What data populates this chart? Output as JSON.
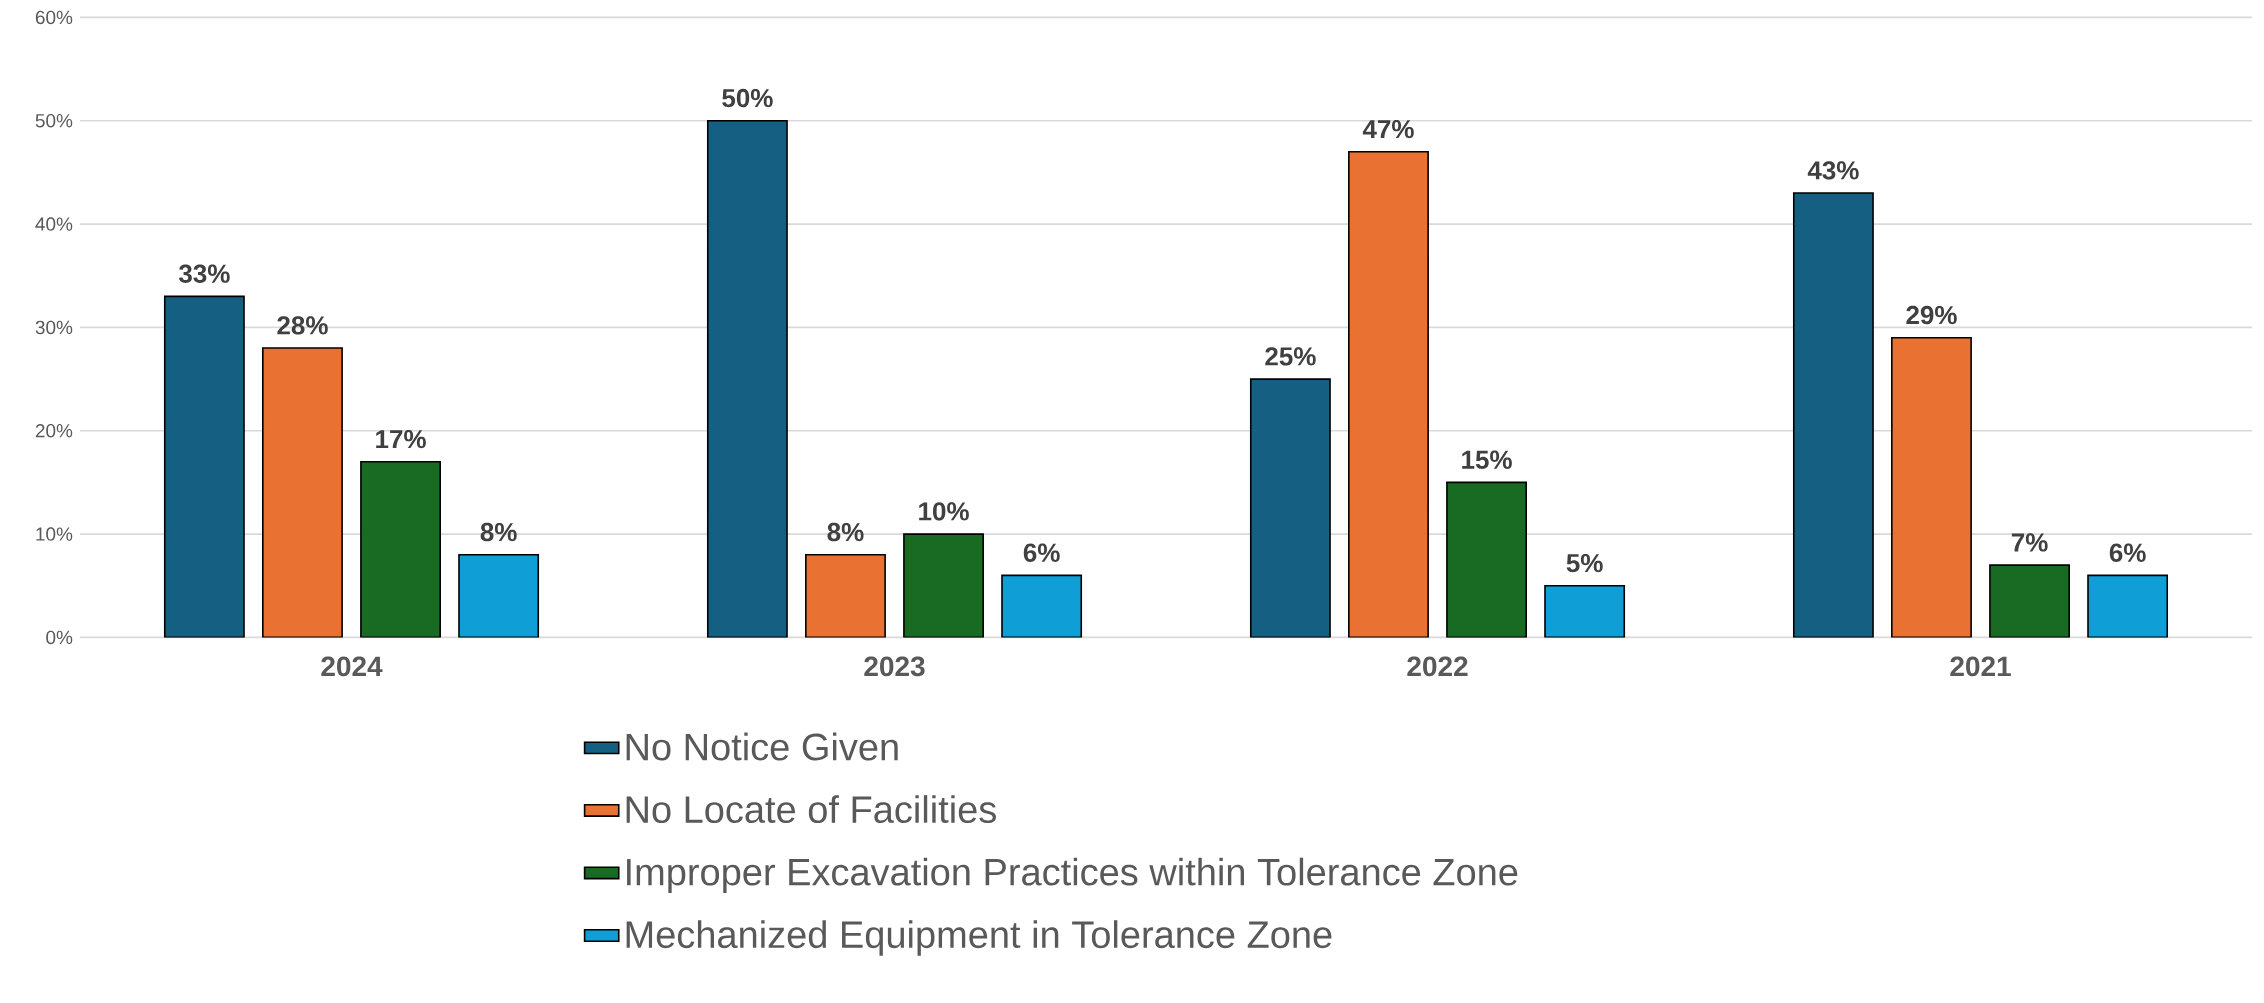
{
  "chart_data": {
    "type": "bar",
    "categories": [
      "2024",
      "2023",
      "2022",
      "2021"
    ],
    "series": [
      {
        "name": "No Notice Given",
        "color": "#156082",
        "values": [
          33,
          50,
          25,
          43
        ],
        "value_labels": [
          "33%",
          "50%",
          "25%",
          "43%"
        ]
      },
      {
        "name": "No Locate of Facilities",
        "color": "#e97132",
        "values": [
          28,
          8,
          47,
          29
        ],
        "value_labels": [
          "28%",
          "8%",
          "47%",
          "29%"
        ]
      },
      {
        "name": "Improper Excavation Practices within Tolerance Zone",
        "color": "#196b24",
        "values": [
          17,
          10,
          15,
          7
        ],
        "value_labels": [
          "17%",
          "10%",
          "15%",
          "7%"
        ]
      },
      {
        "name": "Mechanized Equipment in Tolerance Zone",
        "color": "#0f9ed5",
        "values": [
          8,
          6,
          5,
          6
        ],
        "value_labels": [
          "8%",
          "6%",
          "5%",
          "6%"
        ]
      }
    ],
    "ylim": [
      0,
      60
    ],
    "yticks": [
      {
        "value": 0,
        "label": "0%"
      },
      {
        "value": 10,
        "label": "10%"
      },
      {
        "value": 20,
        "label": "20%"
      },
      {
        "value": 30,
        "label": "30%"
      },
      {
        "value": 40,
        "label": "40%"
      },
      {
        "value": 50,
        "label": "50%"
      },
      {
        "value": 60,
        "label": "60%"
      }
    ],
    "grid": "y",
    "legend": "bottom"
  }
}
